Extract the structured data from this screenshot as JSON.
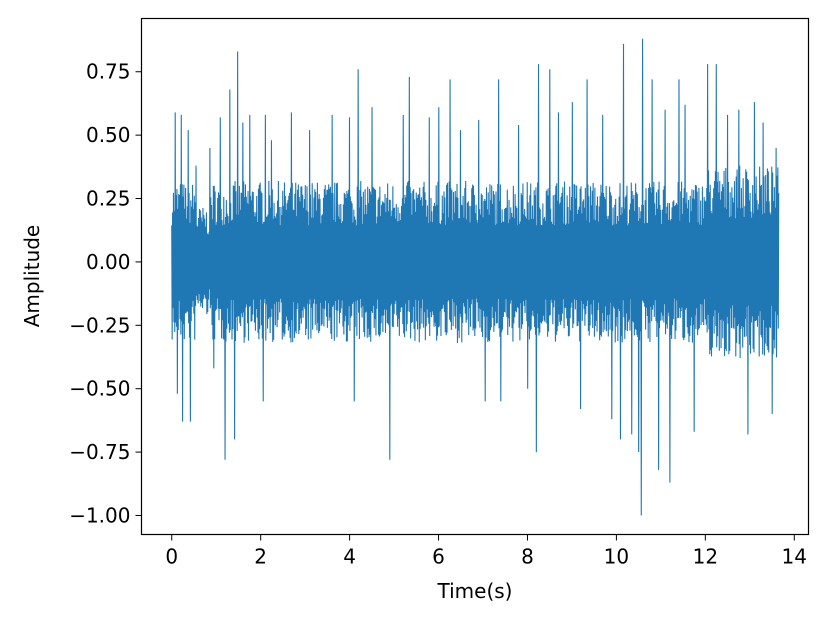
{
  "chart_data": {
    "type": "line",
    "title": "",
    "xlabel": "Time(s)",
    "ylabel": "Amplitude",
    "xlim": [
      -0.68,
      14.32
    ],
    "ylim": [
      -1.075,
      0.96
    ],
    "xticks": [
      0,
      2,
      4,
      6,
      8,
      10,
      12,
      14
    ],
    "yticks": [
      -1.0,
      -0.75,
      -0.5,
      -0.25,
      0.0,
      0.25,
      0.5,
      0.75
    ],
    "xtick_labels": [
      "0",
      "2",
      "4",
      "6",
      "8",
      "10",
      "12",
      "14"
    ],
    "ytick_labels": [
      "−1.00",
      "−0.75",
      "−0.50",
      "−0.25",
      "0.00",
      "0.25",
      "0.50",
      "0.75"
    ],
    "grid": false,
    "legend": "none",
    "series": [
      {
        "color": "#1f77b4",
        "duration": 13.65,
        "samples": 1400,
        "base_envelope": 0.32,
        "peaks": [
          {
            "t": 0.07,
            "v": 0.59
          },
          {
            "t": 0.12,
            "v": -0.52
          },
          {
            "t": 0.22,
            "v": 0.58
          },
          {
            "t": 0.25,
            "v": -0.63
          },
          {
            "t": 0.38,
            "v": 0.52
          },
          {
            "t": 0.42,
            "v": -0.63
          },
          {
            "t": 0.55,
            "v": 0.38
          },
          {
            "t": 0.85,
            "v": 0.45
          },
          {
            "t": 0.95,
            "v": -0.42
          },
          {
            "t": 1.1,
            "v": 0.57
          },
          {
            "t": 1.2,
            "v": -0.78
          },
          {
            "t": 1.3,
            "v": 0.68
          },
          {
            "t": 1.42,
            "v": -0.7
          },
          {
            "t": 1.48,
            "v": 0.83
          },
          {
            "t": 1.6,
            "v": 0.55
          },
          {
            "t": 1.75,
            "v": 0.58
          },
          {
            "t": 2.05,
            "v": -0.55
          },
          {
            "t": 2.1,
            "v": 0.58
          },
          {
            "t": 2.25,
            "v": 0.48
          },
          {
            "t": 2.7,
            "v": 0.59
          },
          {
            "t": 3.1,
            "v": 0.52
          },
          {
            "t": 3.6,
            "v": 0.58
          },
          {
            "t": 4.0,
            "v": 0.57
          },
          {
            "t": 4.1,
            "v": -0.55
          },
          {
            "t": 4.2,
            "v": 0.76
          },
          {
            "t": 4.5,
            "v": 0.61
          },
          {
            "t": 4.9,
            "v": -0.78
          },
          {
            "t": 5.2,
            "v": 0.58
          },
          {
            "t": 5.35,
            "v": 0.73
          },
          {
            "t": 5.8,
            "v": 0.57
          },
          {
            "t": 6.0,
            "v": 0.61
          },
          {
            "t": 6.25,
            "v": 0.72
          },
          {
            "t": 6.5,
            "v": 0.52
          },
          {
            "t": 6.9,
            "v": 0.56
          },
          {
            "t": 7.05,
            "v": -0.55
          },
          {
            "t": 7.35,
            "v": 0.72
          },
          {
            "t": 7.4,
            "v": -0.55
          },
          {
            "t": 7.8,
            "v": 0.54
          },
          {
            "t": 8.0,
            "v": -0.5
          },
          {
            "t": 8.2,
            "v": -0.75
          },
          {
            "t": 8.25,
            "v": 0.78
          },
          {
            "t": 8.5,
            "v": 0.76
          },
          {
            "t": 8.7,
            "v": 0.59
          },
          {
            "t": 9.0,
            "v": 0.63
          },
          {
            "t": 9.2,
            "v": -0.58
          },
          {
            "t": 9.35,
            "v": 0.72
          },
          {
            "t": 9.7,
            "v": 0.58
          },
          {
            "t": 9.9,
            "v": -0.62
          },
          {
            "t": 10.1,
            "v": -0.7
          },
          {
            "t": 10.15,
            "v": 0.86
          },
          {
            "t": 10.35,
            "v": -0.68
          },
          {
            "t": 10.5,
            "v": -0.75
          },
          {
            "t": 10.55,
            "v": -1.0
          },
          {
            "t": 10.58,
            "v": 0.88
          },
          {
            "t": 10.8,
            "v": 0.72
          },
          {
            "t": 10.95,
            "v": -0.82
          },
          {
            "t": 11.1,
            "v": 0.6
          },
          {
            "t": 11.2,
            "v": -0.87
          },
          {
            "t": 11.4,
            "v": 0.72
          },
          {
            "t": 11.55,
            "v": 0.62
          },
          {
            "t": 11.75,
            "v": -0.67
          },
          {
            "t": 12.05,
            "v": 0.78
          },
          {
            "t": 12.25,
            "v": 0.78
          },
          {
            "t": 12.5,
            "v": 0.58
          },
          {
            "t": 12.75,
            "v": 0.6
          },
          {
            "t": 12.95,
            "v": -0.68
          },
          {
            "t": 13.1,
            "v": 0.63
          },
          {
            "t": 13.3,
            "v": 0.55
          },
          {
            "t": 13.5,
            "v": -0.6
          },
          {
            "t": 13.6,
            "v": 0.45
          }
        ]
      }
    ]
  }
}
